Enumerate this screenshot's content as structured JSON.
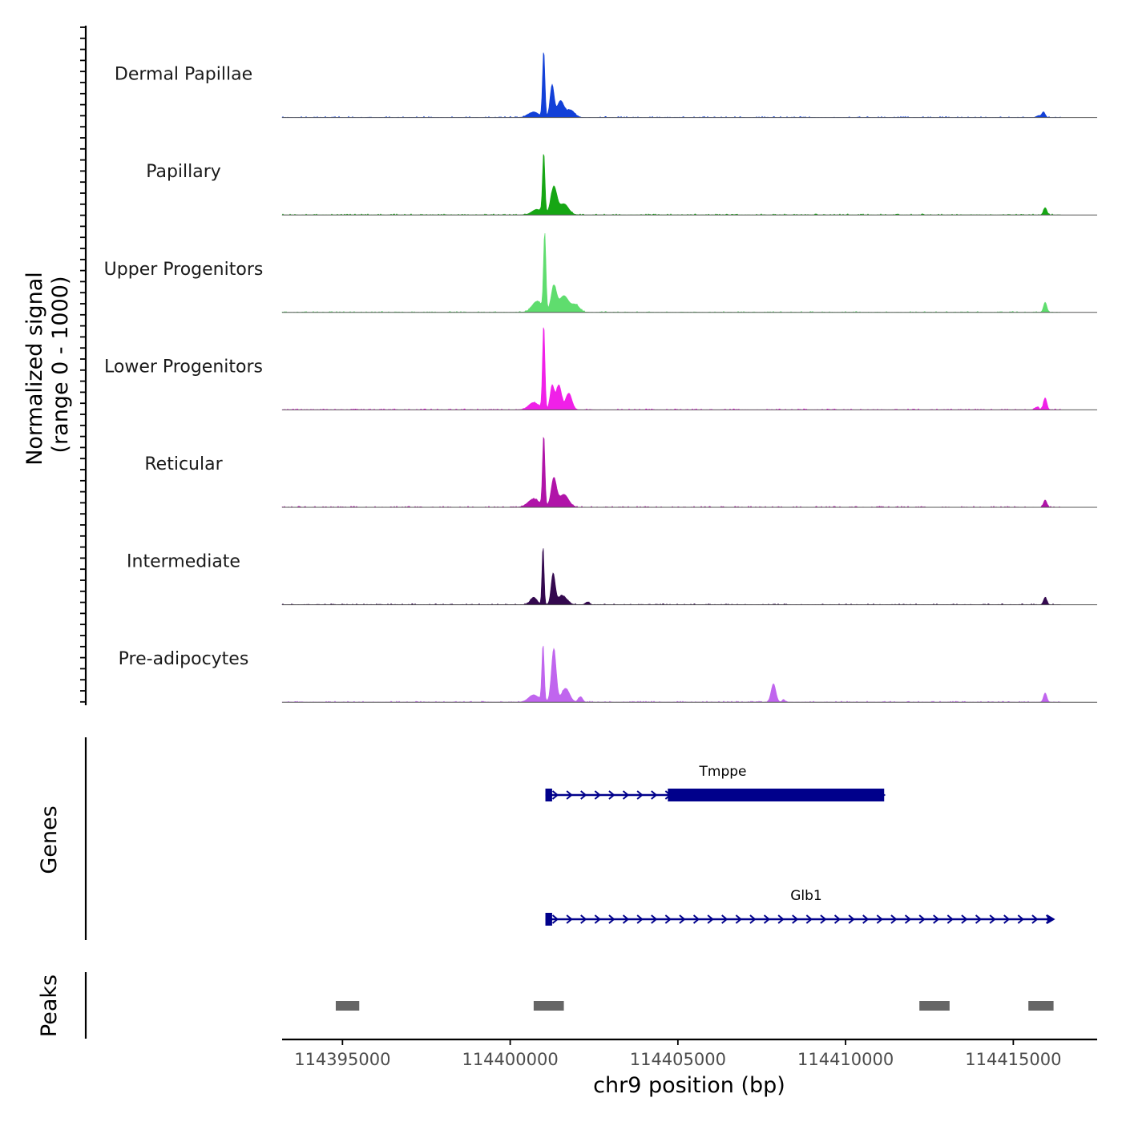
{
  "chart_data": {
    "type": "area",
    "title": "",
    "chromosome": "chr9",
    "xlabel": "chr9 position (bp)",
    "ylabel_line1": "Normalized signal",
    "ylabel_line2": "(range 0 - 1000)",
    "xlim": [
      114393200,
      114417500
    ],
    "ylim": [
      0,
      1000
    ],
    "x_ticks": [
      114395000,
      114400000,
      114405000,
      114410000,
      114415000
    ],
    "x_tick_labels": [
      "114395000",
      "114400000",
      "114405000",
      "114410000",
      "114415000"
    ],
    "series": [
      {
        "name": "Dermal Papillae",
        "color": "#1240d8",
        "peaks": [
          [
            114401000,
            720,
            35
          ],
          [
            114401250,
            350,
            60
          ],
          [
            114401500,
            180,
            100
          ],
          [
            114401800,
            80,
            120
          ],
          [
            114400700,
            60,
            150
          ],
          [
            114415900,
            60,
            50
          ],
          [
            114415750,
            20,
            60
          ]
        ]
      },
      {
        "name": "Papillary",
        "color": "#16a614",
        "peaks": [
          [
            114401000,
            660,
            35
          ],
          [
            114401300,
            300,
            90
          ],
          [
            114401600,
            120,
            140
          ],
          [
            114400800,
            60,
            150
          ],
          [
            114415950,
            80,
            50
          ]
        ]
      },
      {
        "name": "Upper Progenitors",
        "color": "#5fdd6e",
        "peaks": [
          [
            114401030,
            840,
            35
          ],
          [
            114401300,
            280,
            80
          ],
          [
            114401600,
            180,
            140
          ],
          [
            114401950,
            80,
            120
          ],
          [
            114400800,
            120,
            150
          ],
          [
            114415950,
            110,
            50
          ]
        ]
      },
      {
        "name": "Lower Progenitors",
        "color": "#f020e8",
        "peaks": [
          [
            114401000,
            920,
            35
          ],
          [
            114401250,
            260,
            60
          ],
          [
            114401450,
            270,
            80
          ],
          [
            114401750,
            180,
            90
          ],
          [
            114400700,
            80,
            150
          ],
          [
            114415950,
            130,
            50
          ],
          [
            114415700,
            30,
            60
          ]
        ]
      },
      {
        "name": "Reticular",
        "color": "#b014a8",
        "peaks": [
          [
            114401000,
            770,
            35
          ],
          [
            114401300,
            310,
            80
          ],
          [
            114401600,
            140,
            140
          ],
          [
            114400700,
            90,
            170
          ],
          [
            114415950,
            80,
            50
          ]
        ]
      },
      {
        "name": "Intermediate",
        "color": "#34094f",
        "peaks": [
          [
            114400980,
            640,
            30
          ],
          [
            114401280,
            330,
            60
          ],
          [
            114401550,
            100,
            140
          ],
          [
            114400700,
            80,
            100
          ],
          [
            114402300,
            30,
            60
          ],
          [
            114415950,
            80,
            50
          ]
        ]
      },
      {
        "name": "Pre-adipocytes",
        "color": "#c065ee",
        "peaks": [
          [
            114400980,
            620,
            35
          ],
          [
            114401300,
            580,
            70
          ],
          [
            114401650,
            150,
            120
          ],
          [
            114400700,
            80,
            150
          ],
          [
            114402100,
            60,
            60
          ],
          [
            114407850,
            200,
            70
          ],
          [
            114408150,
            30,
            40
          ],
          [
            114415950,
            100,
            50
          ]
        ]
      }
    ],
    "genes": [
      {
        "name": "Tmppe",
        "start": 114401050,
        "end": 114411150,
        "strand": "+",
        "exons": [
          [
            114401050,
            114401250
          ],
          [
            114404700,
            114411150
          ]
        ]
      },
      {
        "name": "Glb1",
        "start": 114401050,
        "end": 114416200,
        "strand": "+",
        "exons": [
          [
            114401050,
            114401250
          ]
        ]
      }
    ],
    "peaks_track": [
      [
        114394800,
        114395500
      ],
      [
        114400700,
        114401600
      ],
      [
        114412200,
        114413100
      ],
      [
        114415450,
        114416200
      ]
    ],
    "panel_labels": {
      "genes": "Genes",
      "peaks": "Peaks"
    }
  }
}
